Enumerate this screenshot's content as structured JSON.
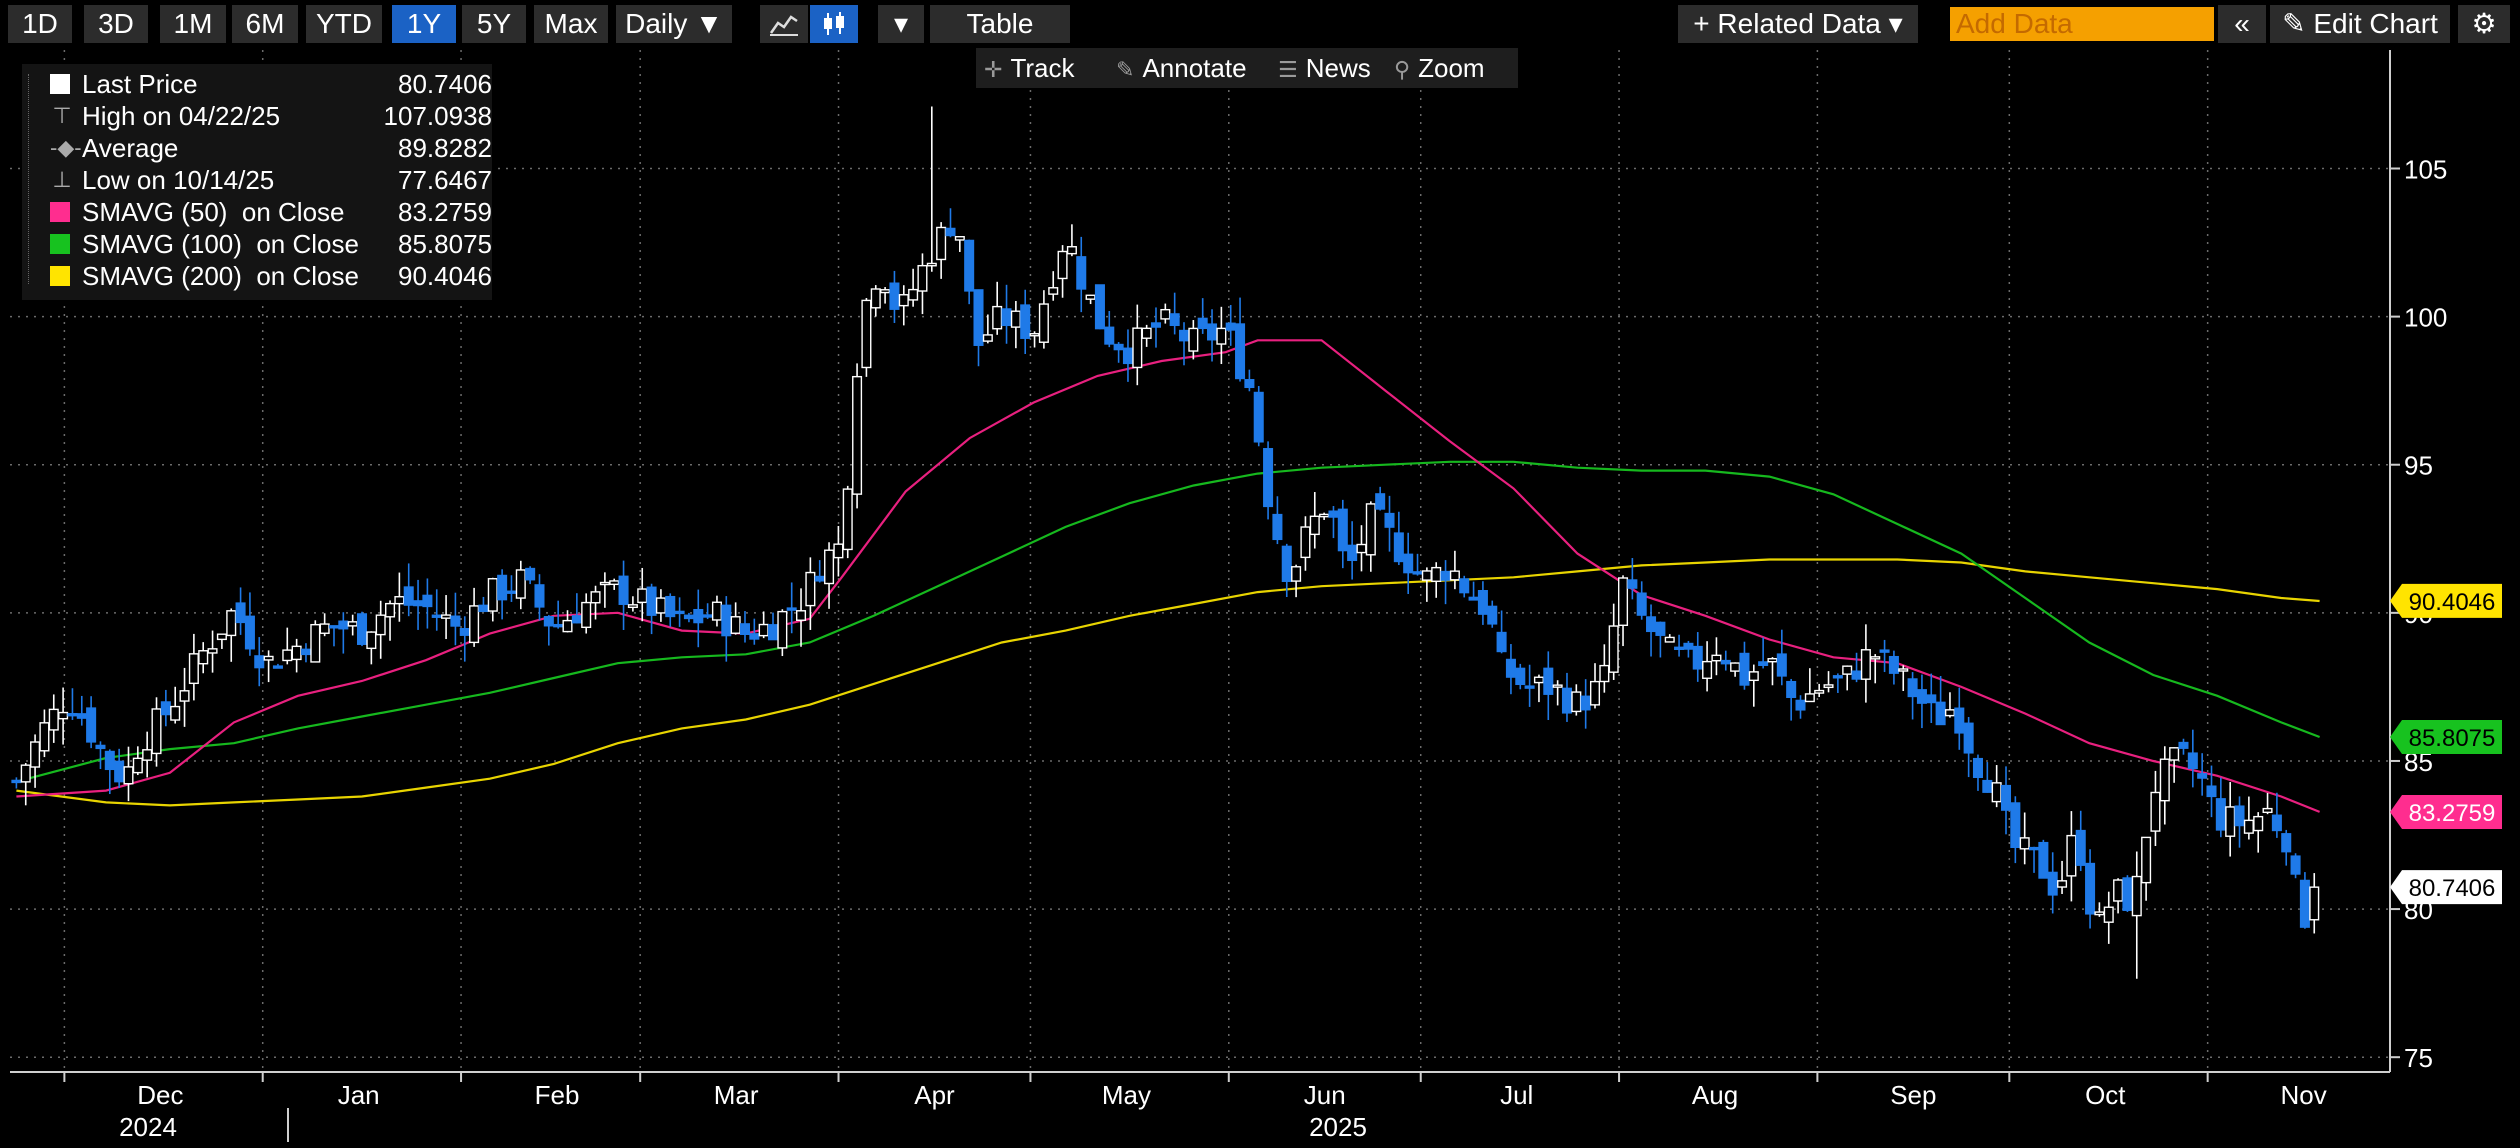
{
  "toolbar": {
    "ranges": [
      "1D",
      "3D",
      "1M",
      "6M",
      "YTD",
      "1Y",
      "5Y",
      "Max"
    ],
    "active_range": "1Y",
    "frequency": "Daily",
    "frequency_arrow": "▼",
    "line_chart_icon": "line-chart-icon",
    "candle_chart_icon": "candlestick-icon",
    "chart_type_arrow": "▾",
    "table_label": "Table",
    "related_data_label": "+ Related Data ▾",
    "add_data_placeholder": "Add Data",
    "collapse_icon": "«",
    "edit_chart_label": "✎ Edit Chart",
    "settings_icon": "⚙"
  },
  "subbar": {
    "track": "Track",
    "annotate": "Annotate",
    "news": "News",
    "zoom": "Zoom"
  },
  "legend": {
    "items": [
      {
        "name": "Last Price",
        "value": "80.7406",
        "color": "#ffffff",
        "kind": "swatch"
      },
      {
        "name": "High on 04/22/25",
        "value": "107.0938",
        "kind": "high"
      },
      {
        "name": "Average",
        "value": "89.8282",
        "kind": "avg"
      },
      {
        "name": "Low on 10/14/25",
        "value": "77.6467",
        "kind": "low"
      },
      {
        "name": "SMAVG (50)  on Close",
        "value": "83.2759",
        "color": "#ff2d8f",
        "kind": "swatch"
      },
      {
        "name": "SMAVG (100)  on Close",
        "value": "85.8075",
        "color": "#17c21f",
        "kind": "swatch"
      },
      {
        "name": "SMAVG (200)  on Close",
        "value": "90.4046",
        "color": "#ffe400",
        "kind": "swatch"
      }
    ]
  },
  "chart_data": {
    "type": "candlestick",
    "ylim": [
      74.5,
      109
    ],
    "yticks": [
      75,
      80,
      85,
      90,
      95,
      100,
      105
    ],
    "x_month_labels": [
      {
        "label": "Dec",
        "x": 8.5
      },
      {
        "label": "Jan",
        "x": 39.5
      },
      {
        "label": "Feb",
        "x": 70.5
      },
      {
        "label": "Mar",
        "x": 98.5
      },
      {
        "label": "Apr",
        "x": 129.5
      },
      {
        "label": "May",
        "x": 159.5
      },
      {
        "label": "Jun",
        "x": 190.5
      },
      {
        "label": "Jul",
        "x": 220.5
      },
      {
        "label": "Aug",
        "x": 251.5
      },
      {
        "label": "Sep",
        "x": 282.5
      },
      {
        "label": "Oct",
        "x": 312.5
      },
      {
        "label": "Nov",
        "x": 343.5
      }
    ],
    "x_year_labels": [
      {
        "label": "2024",
        "x": 0
      },
      {
        "label": "2025",
        "x": 190
      }
    ],
    "xlim": [
      -15,
      357
    ],
    "close_anchors": [
      [
        -14,
        84.3
      ],
      [
        -10,
        86.0
      ],
      [
        -6,
        87.2
      ],
      [
        -3,
        86.3
      ],
      [
        0,
        85.0
      ],
      [
        3,
        84.4
      ],
      [
        5,
        85.5
      ],
      [
        10,
        86.8
      ],
      [
        15,
        88.6
      ],
      [
        20,
        90.1
      ],
      [
        25,
        88.3
      ],
      [
        30,
        88.9
      ],
      [
        35,
        89.6
      ],
      [
        40,
        89.4
      ],
      [
        45,
        90.4
      ],
      [
        50,
        90.2
      ],
      [
        55,
        89.5
      ],
      [
        60,
        90.6
      ],
      [
        65,
        91.1
      ],
      [
        70,
        89.5
      ],
      [
        75,
        90.3
      ],
      [
        80,
        90.8
      ],
      [
        85,
        90.2
      ],
      [
        90,
        89.6
      ],
      [
        95,
        90.0
      ],
      [
        100,
        89.3
      ],
      [
        104,
        89.6
      ],
      [
        109,
        90.5
      ],
      [
        112,
        91.8
      ],
      [
        115,
        92.3
      ],
      [
        118,
        100.0
      ],
      [
        121,
        101.8
      ],
      [
        124,
        100.0
      ],
      [
        129,
        102.2
      ],
      [
        133,
        103.5
      ],
      [
        136,
        99.0
      ],
      [
        140,
        100.0
      ],
      [
        145,
        99.5
      ],
      [
        150,
        102.8
      ],
      [
        153,
        101.0
      ],
      [
        156,
        99.5
      ],
      [
        160,
        98.9
      ],
      [
        165,
        99.8
      ],
      [
        170,
        99.1
      ],
      [
        175,
        99.6
      ],
      [
        179,
        97.5
      ],
      [
        182,
        93.5
      ],
      [
        185,
        91.2
      ],
      [
        188,
        92.8
      ],
      [
        191,
        93.8
      ],
      [
        194,
        91.3
      ],
      [
        198,
        93.3
      ],
      [
        202,
        92.2
      ],
      [
        206,
        91.1
      ],
      [
        210,
        91.6
      ],
      [
        213,
        90.7
      ],
      [
        216,
        90.1
      ],
      [
        218,
        88.2
      ],
      [
        222,
        87.5
      ],
      [
        226,
        87.5
      ],
      [
        230,
        86.9
      ],
      [
        234,
        87.6
      ],
      [
        237,
        91.0
      ],
      [
        240,
        89.8
      ],
      [
        244,
        88.7
      ],
      [
        248,
        88.2
      ],
      [
        252,
        88.9
      ],
      [
        256,
        87.8
      ],
      [
        260,
        88.4
      ],
      [
        264,
        86.9
      ],
      [
        268,
        87.5
      ],
      [
        272,
        87.8
      ],
      [
        276,
        88.7
      ],
      [
        280,
        87.9
      ],
      [
        283,
        87.2
      ],
      [
        286,
        86.4
      ],
      [
        289,
        86.9
      ],
      [
        292,
        85.1
      ],
      [
        295,
        84.2
      ],
      [
        298,
        82.1
      ],
      [
        302,
        81.6
      ],
      [
        305,
        80.6
      ],
      [
        308,
        82.7
      ],
      [
        311,
        79.2
      ],
      [
        314,
        80.6
      ],
      [
        317,
        80.2
      ],
      [
        320,
        84.1
      ],
      [
        324,
        85.1
      ],
      [
        327,
        84.6
      ],
      [
        330,
        83.1
      ],
      [
        334,
        82.9
      ],
      [
        338,
        83.3
      ],
      [
        341,
        82.4
      ],
      [
        343,
        79.6
      ],
      [
        345,
        80.2
      ],
      [
        346,
        80.74
      ]
    ],
    "high": {
      "x": 129,
      "value": 107.0938
    },
    "low": {
      "x": 318,
      "value": 77.6467
    },
    "sma50": [
      [
        -14,
        83.8
      ],
      [
        0,
        84.0
      ],
      [
        10,
        84.6
      ],
      [
        20,
        86.3
      ],
      [
        30,
        87.2
      ],
      [
        40,
        87.7
      ],
      [
        50,
        88.4
      ],
      [
        60,
        89.3
      ],
      [
        70,
        89.9
      ],
      [
        80,
        90.0
      ],
      [
        90,
        89.4
      ],
      [
        100,
        89.3
      ],
      [
        110,
        89.8
      ],
      [
        115,
        91.2
      ],
      [
        125,
        94.1
      ],
      [
        135,
        95.9
      ],
      [
        145,
        97.1
      ],
      [
        155,
        98.0
      ],
      [
        165,
        98.5
      ],
      [
        175,
        98.8
      ],
      [
        180,
        99.2
      ],
      [
        190,
        99.2
      ],
      [
        200,
        97.5
      ],
      [
        210,
        95.8
      ],
      [
        220,
        94.2
      ],
      [
        230,
        92.0
      ],
      [
        240,
        90.6
      ],
      [
        250,
        89.9
      ],
      [
        260,
        89.1
      ],
      [
        270,
        88.5
      ],
      [
        280,
        88.3
      ],
      [
        290,
        87.5
      ],
      [
        300,
        86.6
      ],
      [
        310,
        85.6
      ],
      [
        320,
        85.0
      ],
      [
        330,
        84.5
      ],
      [
        340,
        83.8
      ],
      [
        346,
        83.28
      ]
    ],
    "sma100": [
      [
        -14,
        84.3
      ],
      [
        0,
        85.1
      ],
      [
        10,
        85.4
      ],
      [
        20,
        85.6
      ],
      [
        30,
        86.1
      ],
      [
        40,
        86.5
      ],
      [
        50,
        86.9
      ],
      [
        60,
        87.3
      ],
      [
        70,
        87.8
      ],
      [
        80,
        88.3
      ],
      [
        90,
        88.5
      ],
      [
        100,
        88.6
      ],
      [
        110,
        89.0
      ],
      [
        120,
        89.9
      ],
      [
        130,
        90.9
      ],
      [
        140,
        91.9
      ],
      [
        150,
        92.9
      ],
      [
        160,
        93.7
      ],
      [
        170,
        94.3
      ],
      [
        180,
        94.7
      ],
      [
        190,
        94.9
      ],
      [
        200,
        95.0
      ],
      [
        210,
        95.1
      ],
      [
        220,
        95.1
      ],
      [
        230,
        94.9
      ],
      [
        240,
        94.8
      ],
      [
        250,
        94.8
      ],
      [
        260,
        94.6
      ],
      [
        270,
        94.0
      ],
      [
        280,
        93.0
      ],
      [
        290,
        92.0
      ],
      [
        300,
        90.5
      ],
      [
        310,
        89.0
      ],
      [
        320,
        87.9
      ],
      [
        330,
        87.2
      ],
      [
        340,
        86.3
      ],
      [
        346,
        85.81
      ]
    ],
    "sma200": [
      [
        -14,
        84.0
      ],
      [
        0,
        83.6
      ],
      [
        10,
        83.5
      ],
      [
        20,
        83.6
      ],
      [
        30,
        83.7
      ],
      [
        40,
        83.8
      ],
      [
        50,
        84.1
      ],
      [
        60,
        84.4
      ],
      [
        70,
        84.9
      ],
      [
        80,
        85.6
      ],
      [
        90,
        86.1
      ],
      [
        100,
        86.4
      ],
      [
        110,
        86.9
      ],
      [
        120,
        87.6
      ],
      [
        130,
        88.3
      ],
      [
        140,
        89.0
      ],
      [
        150,
        89.4
      ],
      [
        160,
        89.9
      ],
      [
        170,
        90.3
      ],
      [
        180,
        90.7
      ],
      [
        190,
        90.9
      ],
      [
        200,
        91.0
      ],
      [
        210,
        91.1
      ],
      [
        220,
        91.2
      ],
      [
        230,
        91.4
      ],
      [
        240,
        91.6
      ],
      [
        250,
        91.7
      ],
      [
        260,
        91.8
      ],
      [
        270,
        91.8
      ],
      [
        280,
        91.8
      ],
      [
        290,
        91.7
      ],
      [
        300,
        91.4
      ],
      [
        310,
        91.2
      ],
      [
        320,
        91.0
      ],
      [
        330,
        90.8
      ],
      [
        340,
        90.5
      ],
      [
        346,
        90.4
      ]
    ],
    "value_tags": [
      {
        "text": "90.4046",
        "value": 90.4046,
        "bg": "#ffe400",
        "fg": "#000000"
      },
      {
        "text": "85.8075",
        "value": 85.8075,
        "bg": "#17c21f",
        "fg": "#000000"
      },
      {
        "text": "83.2759",
        "value": 83.2759,
        "bg": "#ff2d8f",
        "fg": "#ffffff"
      },
      {
        "text": "80.7406",
        "value": 80.7406,
        "bg": "#ffffff",
        "fg": "#000000"
      }
    ],
    "colors": {
      "up": "#ffffff",
      "down": "#1f7ae8",
      "grid": "#6b6b6b",
      "axis": "#cfcfcf",
      "sma50": "#e8207f",
      "sma100": "#16b81e",
      "sma200": "#e8d400"
    }
  }
}
